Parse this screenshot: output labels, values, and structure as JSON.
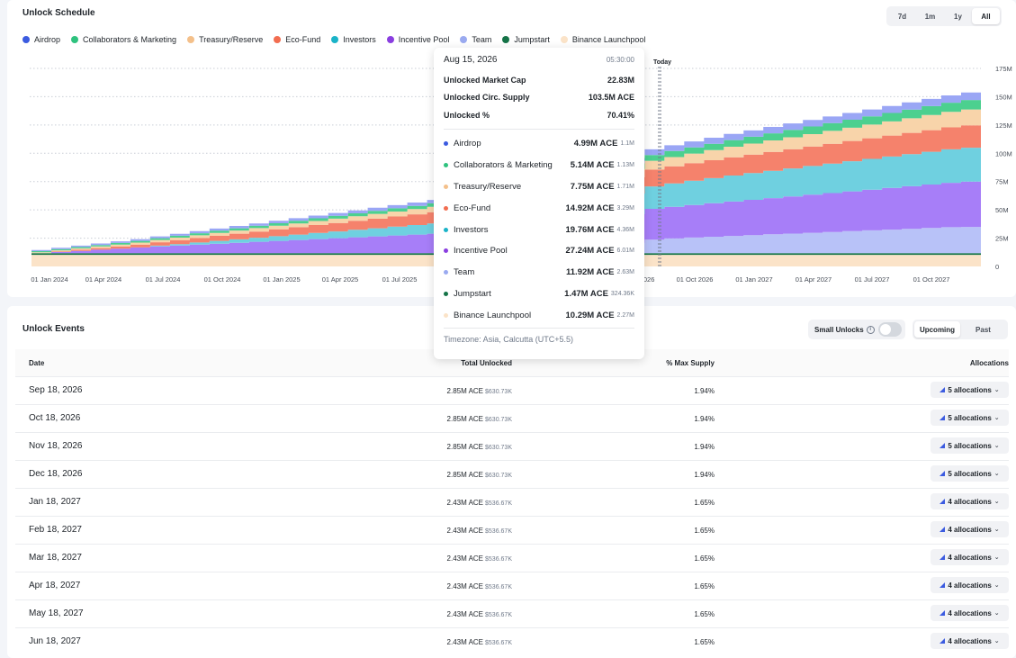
{
  "schedule": {
    "title": "Unlock Schedule",
    "ranges": [
      "7d",
      "1m",
      "1y",
      "All"
    ],
    "active_range": "All",
    "today_label": "Today"
  },
  "legend": [
    {
      "name": "Airdrop",
      "color": "#3b5be0"
    },
    {
      "name": "Collaborators & Marketing",
      "color": "#2ec27e"
    },
    {
      "name": "Treasury/Reserve",
      "color": "#f4c08a"
    },
    {
      "name": "Eco-Fund",
      "color": "#f26d50"
    },
    {
      "name": "Investors",
      "color": "#1ab3c8"
    },
    {
      "name": "Incentive Pool",
      "color": "#8a3ee0"
    },
    {
      "name": "Team",
      "color": "#9aaaf0"
    },
    {
      "name": "Jumpstart",
      "color": "#157347"
    },
    {
      "name": "Binance Launchpool",
      "color": "#fbe3c8"
    }
  ],
  "chart_data": {
    "type": "area",
    "x_ticks": [
      "01 Jan 2024",
      "01 Apr 2024",
      "01 Jul 2024",
      "01 Oct 2024",
      "01 Jan 2025",
      "01 Apr 2025",
      "01 Jul 2025",
      "01 Oct 2025",
      "01 Jan 2026",
      "01 Apr 2026",
      "01 Jul 2026",
      "01 Oct 2026",
      "01 Jan 2027",
      "01 Apr 2027",
      "01 Jul 2027",
      "01 Oct 2027"
    ],
    "y_ticks": [
      "0",
      "25M",
      "50M",
      "75M",
      "100M",
      "125M",
      "150M",
      "175M"
    ],
    "ylim": [
      0,
      175
    ],
    "x": [
      "2024-01",
      "2024-02",
      "2024-03",
      "2024-04",
      "2024-05",
      "2024-06",
      "2024-07",
      "2024-08",
      "2024-09",
      "2024-10",
      "2024-11",
      "2024-12",
      "2025-01",
      "2025-02",
      "2025-03",
      "2025-04",
      "2025-05",
      "2025-06",
      "2025-07",
      "2025-08",
      "2025-09",
      "2025-10",
      "2025-11",
      "2025-12",
      "2026-01",
      "2026-02",
      "2026-03",
      "2026-04",
      "2026-05",
      "2026-06",
      "2026-07",
      "2026-08",
      "2026-09",
      "2026-10",
      "2026-11",
      "2026-12",
      "2027-01",
      "2027-02",
      "2027-03",
      "2027-04",
      "2027-05",
      "2027-06",
      "2027-07",
      "2027-08",
      "2027-09",
      "2027-10",
      "2027-11",
      "2027-12"
    ],
    "series": [
      {
        "name": "Binance Launchpool",
        "color": "#fbe3c8",
        "values": [
          10.29,
          10.29,
          10.29,
          10.29,
          10.29,
          10.29,
          10.29,
          10.29,
          10.29,
          10.29,
          10.29,
          10.29,
          10.29,
          10.29,
          10.29,
          10.29,
          10.29,
          10.29,
          10.29,
          10.29,
          10.29,
          10.29,
          10.29,
          10.29,
          10.29,
          10.29,
          10.29,
          10.29,
          10.29,
          10.29,
          10.29,
          10.29,
          10.29,
          10.29,
          10.29,
          10.29,
          10.29,
          10.29,
          10.29,
          10.29,
          10.29,
          10.29,
          10.29,
          10.29,
          10.29,
          10.29,
          10.29,
          10.29
        ]
      },
      {
        "name": "Jumpstart",
        "color": "#157347",
        "values": [
          1.47,
          1.47,
          1.47,
          1.47,
          1.47,
          1.47,
          1.47,
          1.47,
          1.47,
          1.47,
          1.47,
          1.47,
          1.47,
          1.47,
          1.47,
          1.47,
          1.47,
          1.47,
          1.47,
          1.47,
          1.47,
          1.47,
          1.47,
          1.47,
          1.47,
          1.47,
          1.47,
          1.47,
          1.47,
          1.47,
          1.47,
          1.47,
          1.47,
          1.47,
          1.47,
          1.47,
          1.47,
          1.47,
          1.47,
          1.47,
          1.47,
          1.47,
          1.47,
          1.47,
          1.47,
          1.47,
          1.47,
          1.47
        ]
      },
      {
        "name": "Team",
        "color": "#b8c2f8",
        "values": [
          0,
          0,
          0,
          0,
          0,
          0,
          0,
          0,
          0,
          0,
          0,
          0,
          0,
          0,
          0,
          0,
          0,
          0,
          0,
          0,
          0,
          0,
          0,
          0,
          0,
          1.0,
          2.5,
          4.0,
          5.5,
          7.0,
          9.0,
          11.92,
          13.0,
          13.8,
          14.5,
          15.2,
          15.9,
          16.6,
          17.3,
          18.0,
          18.7,
          19.4,
          20.1,
          20.8,
          21.5,
          22.2,
          22.9,
          23.2
        ]
      },
      {
        "name": "Incentive Pool",
        "color": "#a77ef8",
        "values": [
          0,
          1.0,
          2.0,
          3.0,
          4.0,
          5.0,
          6.0,
          6.8,
          7.6,
          8.4,
          9.2,
          10.0,
          10.8,
          11.6,
          12.4,
          13.2,
          14.0,
          14.8,
          15.6,
          16.4,
          17.2,
          18.0,
          18.8,
          19.6,
          20.4,
          21.2,
          22.0,
          22.8,
          23.6,
          24.4,
          25.6,
          27.24,
          28.0,
          28.8,
          29.6,
          30.4,
          31.2,
          32.0,
          32.8,
          33.6,
          34.4,
          35.2,
          36.0,
          36.8,
          37.6,
          38.4,
          39.2,
          40.0
        ]
      },
      {
        "name": "Investors",
        "color": "#6fd0e0",
        "values": [
          0,
          0,
          0,
          0,
          0,
          0,
          0.6,
          1.2,
          1.8,
          2.4,
          3.0,
          3.6,
          4.2,
          4.8,
          5.4,
          6.0,
          6.6,
          7.2,
          7.8,
          8.4,
          9.0,
          9.6,
          10.2,
          10.8,
          11.4,
          12.0,
          12.8,
          13.8,
          15.0,
          16.2,
          18.0,
          19.76,
          20.6,
          21.4,
          22.2,
          23.0,
          23.6,
          24.2,
          24.8,
          25.4,
          26.0,
          26.6,
          27.2,
          27.8,
          28.4,
          29.0,
          29.6,
          30.0
        ]
      },
      {
        "name": "Eco-Fund",
        "color": "#f5826c",
        "values": [
          0,
          0.5,
          1.0,
          1.5,
          2.0,
          2.5,
          3.0,
          3.5,
          4.0,
          4.5,
          5.0,
          5.5,
          6.0,
          6.5,
          7.0,
          7.5,
          8.0,
          8.5,
          9.0,
          9.5,
          10.0,
          10.5,
          11.0,
          11.5,
          12.0,
          12.5,
          13.0,
          13.5,
          14.0,
          14.2,
          14.5,
          14.92,
          15.2,
          15.5,
          15.8,
          16.1,
          16.4,
          16.7,
          17.0,
          17.3,
          17.6,
          17.9,
          18.2,
          18.5,
          18.8,
          19.1,
          19.4,
          19.7
        ]
      },
      {
        "name": "Treasury/Reserve",
        "color": "#f8d4aa",
        "values": [
          0.8,
          1.0,
          1.2,
          1.4,
          1.6,
          1.8,
          2.0,
          2.2,
          2.4,
          2.6,
          2.8,
          3.0,
          3.2,
          3.4,
          3.6,
          3.8,
          4.0,
          4.2,
          4.4,
          4.6,
          4.8,
          5.0,
          5.2,
          5.4,
          5.6,
          5.8,
          6.0,
          6.3,
          6.6,
          6.9,
          7.3,
          7.75,
          8.1,
          8.5,
          8.9,
          9.3,
          9.7,
          10.1,
          10.5,
          10.9,
          11.3,
          11.7,
          12.1,
          12.5,
          12.9,
          13.3,
          13.7,
          14.1
        ]
      },
      {
        "name": "Collaborators & Marketing",
        "color": "#4cd08f",
        "values": [
          1.0,
          1.1,
          1.2,
          1.3,
          1.4,
          1.5,
          1.6,
          1.7,
          1.8,
          1.9,
          2.0,
          2.1,
          2.2,
          2.3,
          2.4,
          2.5,
          2.6,
          2.7,
          2.8,
          2.9,
          3.0,
          3.1,
          3.2,
          3.3,
          3.4,
          3.6,
          3.8,
          4.0,
          4.3,
          4.6,
          4.9,
          5.14,
          5.3,
          5.5,
          5.7,
          5.9,
          6.1,
          6.3,
          6.5,
          6.7,
          6.9,
          7.1,
          7.3,
          7.5,
          7.7,
          7.9,
          8.1,
          8.3
        ]
      },
      {
        "name": "Airdrop",
        "color": "#9aa6f5",
        "values": [
          1.0,
          1.1,
          1.2,
          1.3,
          1.4,
          1.5,
          1.6,
          1.7,
          1.8,
          1.9,
          2.0,
          2.1,
          2.2,
          2.3,
          2.4,
          2.5,
          2.6,
          2.7,
          2.8,
          2.9,
          3.0,
          3.1,
          3.2,
          3.3,
          3.4,
          3.6,
          3.8,
          4.0,
          4.3,
          4.6,
          4.8,
          4.99,
          5.1,
          5.2,
          5.3,
          5.4,
          5.5,
          5.6,
          5.7,
          5.8,
          5.9,
          6.0,
          6.1,
          6.2,
          6.3,
          6.4,
          6.5,
          6.6
        ]
      }
    ]
  },
  "tooltip": {
    "date": "Aug 15, 2026",
    "time": "05:30:00",
    "stats": [
      {
        "label": "Unlocked Market Cap",
        "value": "22.83M"
      },
      {
        "label": "Unlocked Circ. Supply",
        "value": "103.5M ACE"
      },
      {
        "label": "Unlocked %",
        "value": "70.41%"
      }
    ],
    "rows": [
      {
        "name": "Airdrop",
        "value": "4.99M ACE",
        "usd": "1.1M",
        "color": "#3b5be0"
      },
      {
        "name": "Collaborators & Marketing",
        "value": "5.14M ACE",
        "usd": "1.13M",
        "color": "#2ec27e"
      },
      {
        "name": "Treasury/Reserve",
        "value": "7.75M ACE",
        "usd": "1.71M",
        "color": "#f4c08a"
      },
      {
        "name": "Eco-Fund",
        "value": "14.92M ACE",
        "usd": "3.29M",
        "color": "#f26d50"
      },
      {
        "name": "Investors",
        "value": "19.76M ACE",
        "usd": "4.36M",
        "color": "#1ab3c8"
      },
      {
        "name": "Incentive Pool",
        "value": "27.24M ACE",
        "usd": "6.01M",
        "color": "#8a3ee0"
      },
      {
        "name": "Team",
        "value": "11.92M ACE",
        "usd": "2.63M",
        "color": "#9aaaf0"
      },
      {
        "name": "Jumpstart",
        "value": "1.47M ACE",
        "usd": "324.36K",
        "color": "#157347"
      },
      {
        "name": "Binance Launchpool",
        "value": "10.29M ACE",
        "usd": "2.27M",
        "color": "#fbe3c8"
      }
    ],
    "timezone": "Timezone: Asia, Calcutta (UTC+5.5)"
  },
  "events": {
    "title": "Unlock Events",
    "small_unlocks_label": "Small Unlocks",
    "tabs": [
      "Upcoming",
      "Past"
    ],
    "active_tab": "Upcoming",
    "columns": {
      "date": "Date",
      "total": "Total Unlocked",
      "pct": "% Max Supply",
      "alloc": "Allocations"
    },
    "rows": [
      {
        "date": "Sep 18, 2026",
        "total": "2.85M ACE",
        "usd": "$630.73K",
        "pct": "1.94%",
        "alloc": "5 allocations"
      },
      {
        "date": "Oct 18, 2026",
        "total": "2.85M ACE",
        "usd": "$630.73K",
        "pct": "1.94%",
        "alloc": "5 allocations"
      },
      {
        "date": "Nov 18, 2026",
        "total": "2.85M ACE",
        "usd": "$630.73K",
        "pct": "1.94%",
        "alloc": "5 allocations"
      },
      {
        "date": "Dec 18, 2026",
        "total": "2.85M ACE",
        "usd": "$630.73K",
        "pct": "1.94%",
        "alloc": "5 allocations"
      },
      {
        "date": "Jan 18, 2027",
        "total": "2.43M ACE",
        "usd": "$536.67K",
        "pct": "1.65%",
        "alloc": "4 allocations"
      },
      {
        "date": "Feb 18, 2027",
        "total": "2.43M ACE",
        "usd": "$536.67K",
        "pct": "1.65%",
        "alloc": "4 allocations"
      },
      {
        "date": "Mar 18, 2027",
        "total": "2.43M ACE",
        "usd": "$536.67K",
        "pct": "1.65%",
        "alloc": "4 allocations"
      },
      {
        "date": "Apr 18, 2027",
        "total": "2.43M ACE",
        "usd": "$536.67K",
        "pct": "1.65%",
        "alloc": "4 allocations"
      },
      {
        "date": "May 18, 2027",
        "total": "2.43M ACE",
        "usd": "$536.67K",
        "pct": "1.65%",
        "alloc": "4 allocations"
      },
      {
        "date": "Jun 18, 2027",
        "total": "2.43M ACE",
        "usd": "$536.67K",
        "pct": "1.65%",
        "alloc": "4 allocations"
      }
    ]
  }
}
